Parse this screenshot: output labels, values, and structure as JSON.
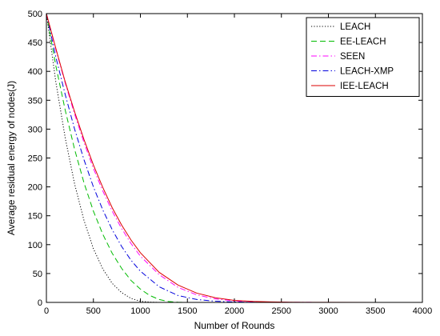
{
  "chart_data": {
    "type": "line",
    "title": "",
    "xlabel": "Number of Rounds",
    "ylabel": "Average residual energy of nodes(J)",
    "xlim": [
      0,
      4000
    ],
    "ylim": [
      0,
      500
    ],
    "xticks": [
      "0",
      "500",
      "1000",
      "1500",
      "2000",
      "2500",
      "3000",
      "3500",
      "4000"
    ],
    "yticks": [
      "0",
      "50",
      "100",
      "150",
      "200",
      "250",
      "300",
      "350",
      "400",
      "450",
      "500"
    ],
    "grid": false,
    "legend_position": "top-right",
    "series": [
      {
        "name": "LEACH",
        "color": "#000000",
        "dash": "dotted",
        "x": [
          0,
          100,
          200,
          300,
          400,
          500,
          600,
          700,
          800,
          900,
          1000,
          1100,
          1200,
          1250,
          4000
        ],
        "y": [
          500,
          382,
          285,
          205,
          142,
          93,
          58,
          33,
          17,
          7,
          2,
          0.5,
          0,
          0,
          0
        ]
      },
      {
        "name": "EE-LEACH",
        "color": "#00bb00",
        "dash": "dashed",
        "x": [
          0,
          100,
          200,
          300,
          400,
          500,
          600,
          700,
          800,
          900,
          1000,
          1100,
          1200,
          1300,
          1400,
          1500,
          4000
        ],
        "y": [
          500,
          410,
          333,
          265,
          207,
          158,
          118,
          85,
          59,
          38,
          23,
          12,
          5,
          1.5,
          0.3,
          0,
          0
        ]
      },
      {
        "name": "SEEN",
        "color": "#ff00ff",
        "dash": "dashdot",
        "x": [
          0,
          100,
          200,
          300,
          400,
          500,
          600,
          700,
          800,
          900,
          1000,
          1200,
          1400,
          1600,
          1800,
          2000,
          2200,
          2400,
          2600,
          2800,
          3000,
          4000
        ],
        "y": [
          500,
          438,
          380,
          326,
          277,
          232,
          193,
          158,
          128,
          102,
          80,
          48,
          26,
          13,
          6,
          2.5,
          1.2,
          0.5,
          0.2,
          0.1,
          0,
          0
        ]
      },
      {
        "name": "LEACH-XMP",
        "color": "#0000dd",
        "dash": "dashdot",
        "x": [
          0,
          100,
          200,
          300,
          400,
          500,
          600,
          700,
          800,
          900,
          1000,
          1200,
          1400,
          1600,
          1800,
          2000,
          2200,
          2400,
          2600,
          3000,
          4000
        ],
        "y": [
          500,
          425,
          360,
          300,
          247,
          200,
          160,
          126,
          97,
          73,
          54,
          27,
          12,
          5,
          2,
          0.8,
          0.3,
          0.1,
          0,
          0,
          0
        ]
      },
      {
        "name": "IEE-LEACH",
        "color": "#dd0000",
        "dash": "solid",
        "x": [
          0,
          100,
          200,
          300,
          400,
          500,
          600,
          700,
          800,
          900,
          1000,
          1200,
          1400,
          1600,
          1800,
          2000,
          2200,
          2400,
          2600,
          2800,
          3000,
          3500,
          4000
        ],
        "y": [
          500,
          440,
          382,
          330,
          282,
          238,
          199,
          164,
          134,
          108,
          86,
          52,
          30,
          16,
          8,
          3.5,
          1.8,
          0.9,
          0.4,
          0.2,
          0.1,
          0,
          0
        ]
      }
    ]
  }
}
